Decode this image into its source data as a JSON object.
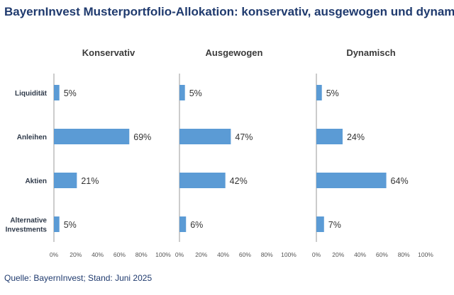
{
  "title": "BayernInvest Musterportfolio-Allokation: konservativ, ausgewogen und dynamisch",
  "source": "Quelle: BayernInvest; Stand: Juni 2025",
  "colors": {
    "bar": "#5b9bd5",
    "title": "#1f3a6e"
  },
  "chart_data": {
    "type": "bar",
    "orientation": "horizontal",
    "categories": [
      "Liquidität",
      [
        "Anleihen"
      ],
      [
        "Aktien"
      ],
      [
        "Alternative",
        "Investments"
      ]
    ],
    "category_labels": [
      "Liquidität",
      "Anleihen",
      "Aktien",
      "Alternative Investments"
    ],
    "xlim": [
      0,
      100
    ],
    "x_ticks": [
      "0%",
      "20%",
      "40%",
      "60%",
      "80%",
      "100%"
    ],
    "grid": false,
    "panels": [
      {
        "title": "Konservativ",
        "values": [
          5,
          69,
          21,
          5
        ],
        "value_labels": [
          "5%",
          "69%",
          "21%",
          "5%"
        ]
      },
      {
        "title": "Ausgewogen",
        "values": [
          5,
          47,
          42,
          6
        ],
        "value_labels": [
          "5%",
          "47%",
          "42%",
          "6%"
        ]
      },
      {
        "title": "Dynamisch",
        "values": [
          5,
          24,
          64,
          7
        ],
        "value_labels": [
          "5%",
          "24%",
          "64%",
          "7%"
        ]
      }
    ]
  }
}
